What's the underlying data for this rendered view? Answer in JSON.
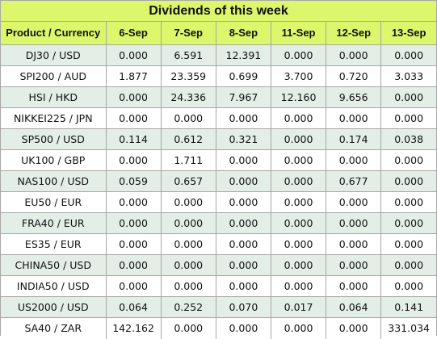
{
  "title": "Dividends of this week",
  "columns": [
    "Product / Currency",
    "6-Sep",
    "7-Sep",
    "8-Sep",
    "11-Sep",
    "12-Sep",
    "13-Sep"
  ],
  "rows": [
    {
      "product": "DJ30 / USD",
      "values": [
        "0.000",
        "6.591",
        "12.391",
        "0.000",
        "0.000",
        "0.000"
      ]
    },
    {
      "product": "SPI200 / AUD",
      "values": [
        "1.877",
        "23.359",
        "0.699",
        "3.700",
        "0.720",
        "3.033"
      ]
    },
    {
      "product": "HSI / HKD",
      "values": [
        "0.000",
        "24.336",
        "7.967",
        "12.160",
        "9.656",
        "0.000"
      ]
    },
    {
      "product": "NIKKEI225 / JPN",
      "values": [
        "0.000",
        "0.000",
        "0.000",
        "0.000",
        "0.000",
        "0.000"
      ]
    },
    {
      "product": "SP500 / USD",
      "values": [
        "0.114",
        "0.612",
        "0.321",
        "0.000",
        "0.174",
        "0.038"
      ]
    },
    {
      "product": "UK100 / GBP",
      "values": [
        "0.000",
        "1.711",
        "0.000",
        "0.000",
        "0.000",
        "0.000"
      ]
    },
    {
      "product": "NAS100 / USD",
      "values": [
        "0.059",
        "0.657",
        "0.000",
        "0.000",
        "0.677",
        "0.000"
      ]
    },
    {
      "product": "EU50 / EUR",
      "values": [
        "0.000",
        "0.000",
        "0.000",
        "0.000",
        "0.000",
        "0.000"
      ]
    },
    {
      "product": "FRA40 / EUR",
      "values": [
        "0.000",
        "0.000",
        "0.000",
        "0.000",
        "0.000",
        "0.000"
      ]
    },
    {
      "product": "ES35 / EUR",
      "values": [
        "0.000",
        "0.000",
        "0.000",
        "0.000",
        "0.000",
        "0.000"
      ]
    },
    {
      "product": "CHINA50 / USD",
      "values": [
        "0.000",
        "0.000",
        "0.000",
        "0.000",
        "0.000",
        "0.000"
      ]
    },
    {
      "product": "INDIA50 / USD",
      "values": [
        "0.000",
        "0.000",
        "0.000",
        "0.000",
        "0.000",
        "0.000"
      ]
    },
    {
      "product": "US2000 / USD",
      "values": [
        "0.064",
        "0.252",
        "0.070",
        "0.017",
        "0.064",
        "0.141"
      ]
    },
    {
      "product": "SA40 / ZAR",
      "values": [
        "142.162",
        "0.000",
        "0.000",
        "0.000",
        "0.000",
        "331.034"
      ]
    }
  ],
  "colors": {
    "header_bg": "#dcf76b",
    "row_alt_bg": "#e2eee6",
    "row_bg": "#ffffff",
    "border": "#a7a7a7"
  }
}
